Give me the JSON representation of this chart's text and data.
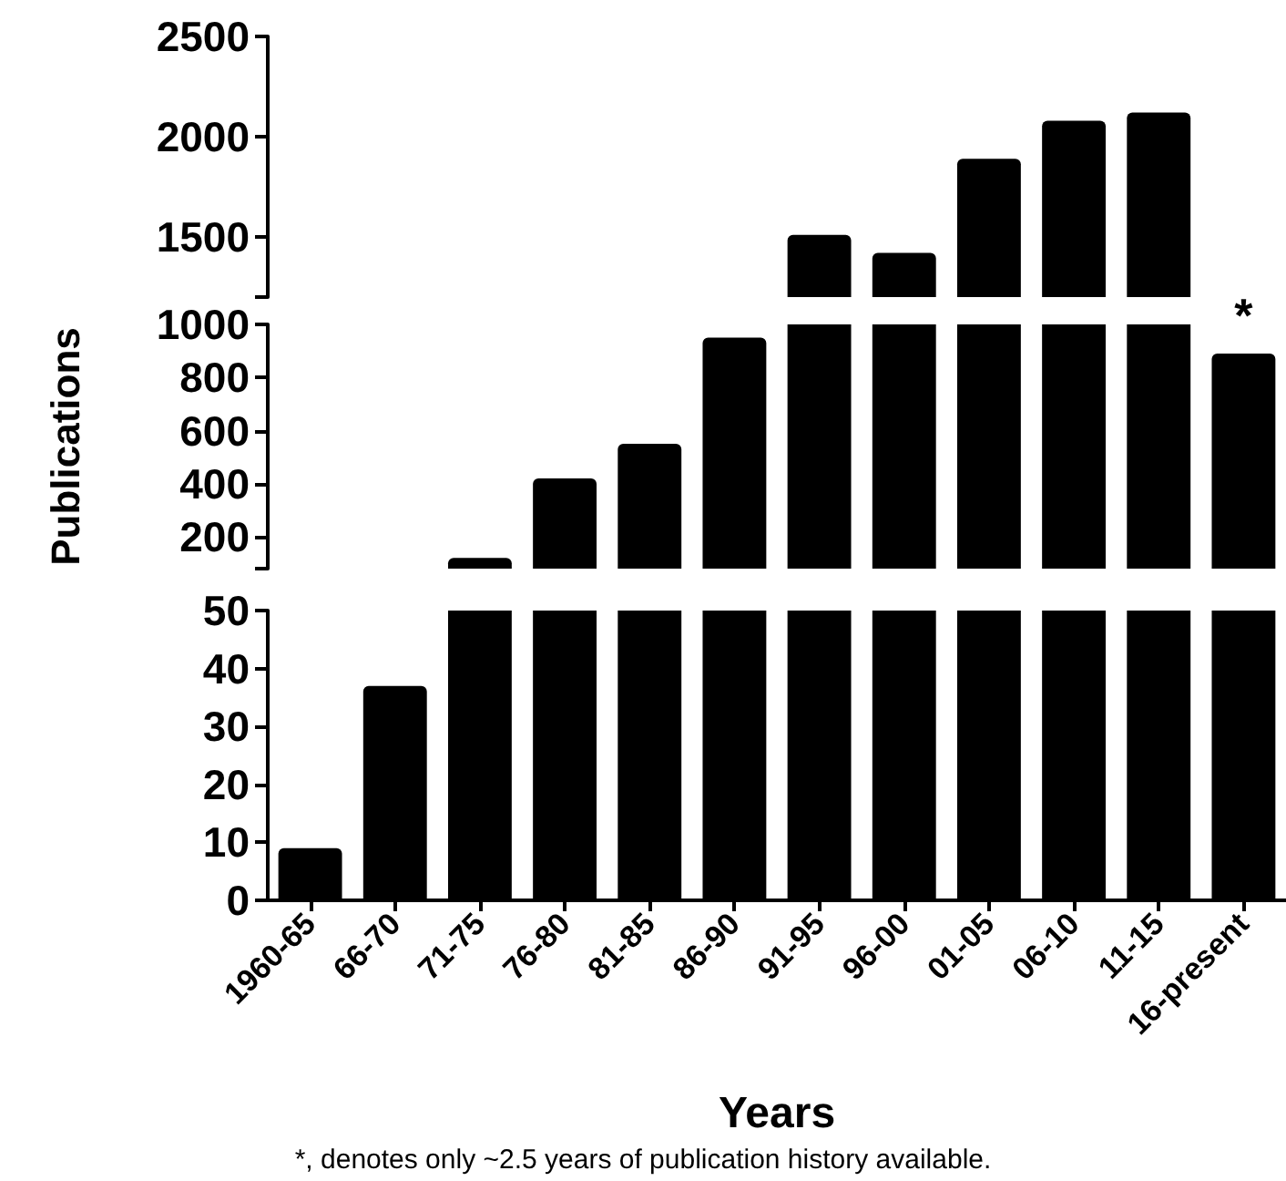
{
  "chart_data": [
    {
      "type": "bar",
      "categories": [
        "1960-65",
        "66-70",
        "71-75",
        "76-80",
        "81-85",
        "86-90",
        "91-95",
        "96-00",
        "01-05",
        "06-10",
        "11-15",
        "16-present"
      ],
      "series": [
        {
          "color": "#000000",
          "values": [
            null,
            null,
            null,
            null,
            null,
            null,
            1510,
            1420,
            1890,
            2080,
            2120,
            null
          ]
        }
      ],
      "ylim": [
        1200,
        2500
      ],
      "yticks": [
        {
          "value": 1200,
          "label": null
        },
        1500,
        2000,
        2500
      ],
      "grid": false,
      "tick_labels": "y"
    },
    {
      "type": "bar",
      "categories": [
        "1960-65",
        "66-70",
        "71-75",
        "76-80",
        "81-85",
        "86-90",
        "91-95",
        "96-00",
        "01-05",
        "06-10",
        "11-15",
        "16-present"
      ],
      "series": [
        {
          "color": "#000000",
          "values": [
            null,
            null,
            120,
            420,
            550,
            950,
            null,
            null,
            null,
            null,
            null,
            890
          ]
        },
        {
          "color": "#000000",
          "base": [
            null,
            null,
            null,
            null,
            null,
            null,
            80,
            80,
            80,
            80,
            80,
            null
          ],
          "values": [
            null,
            null,
            null,
            null,
            null,
            null,
            920,
            920,
            920,
            920,
            920,
            null
          ]
        }
      ],
      "ylim": [
        80,
        1000
      ],
      "yticks": [
        {
          "value": 80,
          "label": null
        },
        200,
        400,
        600,
        800,
        1000
      ],
      "ylabel": "Publications",
      "grid": false,
      "tick_labels": "y",
      "annotations": [
        {
          "text": "*",
          "x": "16-present",
          "y": 890
        }
      ]
    },
    {
      "type": "bar",
      "categories": [
        "1960-65",
        "66-70",
        "71-75",
        "76-80",
        "81-85",
        "86-90",
        "91-95",
        "96-00",
        "01-05",
        "06-10",
        "11-15",
        "16-present"
      ],
      "series": [
        {
          "color": "#000000",
          "values": [
            9,
            37,
            null,
            null,
            null,
            null,
            null,
            null,
            null,
            null,
            null,
            null
          ]
        },
        {
          "color": "#000000",
          "base": [
            null,
            null,
            0,
            0,
            0,
            0,
            0,
            0,
            0,
            0,
            0,
            0
          ],
          "values": [
            null,
            null,
            50,
            50,
            50,
            50,
            50,
            50,
            50,
            50,
            50,
            50
          ]
        }
      ],
      "ylim": [
        0,
        50
      ],
      "yticks": [
        0,
        10,
        20,
        30,
        40,
        50
      ],
      "xlabel": "Years",
      "grid": false,
      "annotations": [
        "*, denotes only ~2.5 years of publication history available."
      ]
    }
  ]
}
